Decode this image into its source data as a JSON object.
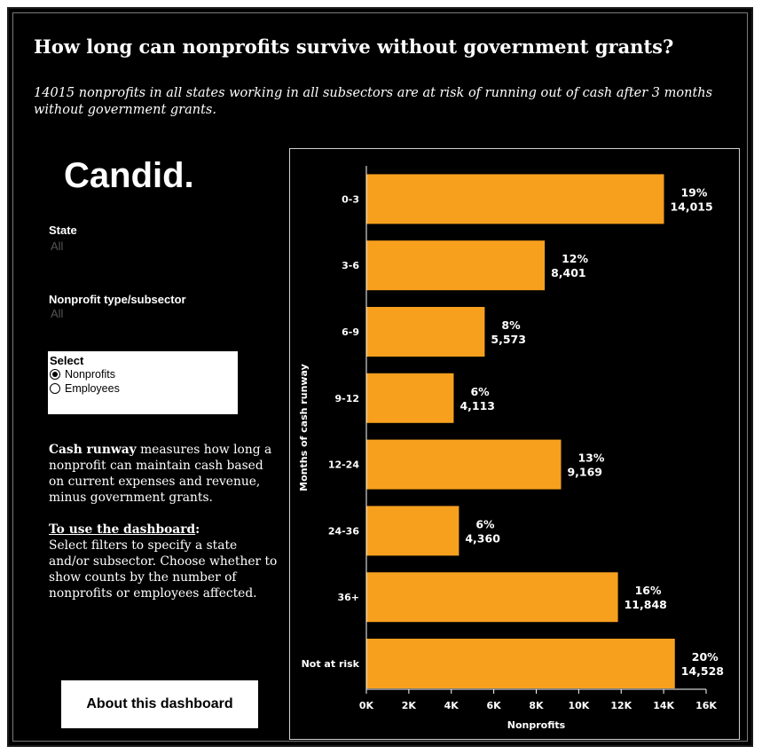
{
  "header": {
    "title": "How long can nonprofits survive without government grants?",
    "subtitle": "14015 nonprofits in all states working in all subsectors are at risk of running out of cash after 3 months without government grants."
  },
  "logo": {
    "text": "Candid."
  },
  "filters": {
    "state": {
      "label": "State",
      "value": "All"
    },
    "subsector": {
      "label": "Nonprofit type/subsector",
      "value": "All"
    }
  },
  "select": {
    "label": "Select",
    "options": [
      "Nonprofits",
      "Employees"
    ],
    "selected": "Nonprofits"
  },
  "info": {
    "cash_runway_term": "Cash runway",
    "cash_runway_text": " measures how long a nonprofit can maintain cash based on current expenses and revenue, minus government grants.",
    "usage_heading": "To use the dashboard",
    "usage_colon": ":",
    "usage_text": "Select filters to specify a state and/or subsector. Choose whether to show counts by the number of nonprofits or employees affected."
  },
  "about_button": {
    "label": "About this dashboard"
  },
  "colors": {
    "bar": "#F7A01E",
    "background": "#000000",
    "text": "#FFFFFF"
  },
  "chart_data": {
    "type": "bar",
    "orientation": "horizontal",
    "categories": [
      "0-3",
      "3-6",
      "6-9",
      "9-12",
      "12-24",
      "24-36",
      "36+",
      "Not at risk"
    ],
    "values": [
      14015,
      8401,
      5573,
      4113,
      9169,
      4360,
      11848,
      14528
    ],
    "value_labels": [
      "14,015",
      "8,401",
      "5,573",
      "4,113",
      "9,169",
      "4,360",
      "11,848",
      "14,528"
    ],
    "percent_labels": [
      "19%",
      "12%",
      "8%",
      "6%",
      "13%",
      "6%",
      "16%",
      "20%"
    ],
    "xlabel": "Nonprofits",
    "ylabel": "Months of cash runway",
    "xlim": [
      0,
      16000
    ],
    "xticks": [
      0,
      2000,
      4000,
      6000,
      8000,
      10000,
      12000,
      14000,
      16000
    ],
    "xtick_labels": [
      "0K",
      "2K",
      "4K",
      "6K",
      "8K",
      "10K",
      "12K",
      "14K",
      "16K"
    ],
    "grid": false,
    "legend": "none"
  }
}
